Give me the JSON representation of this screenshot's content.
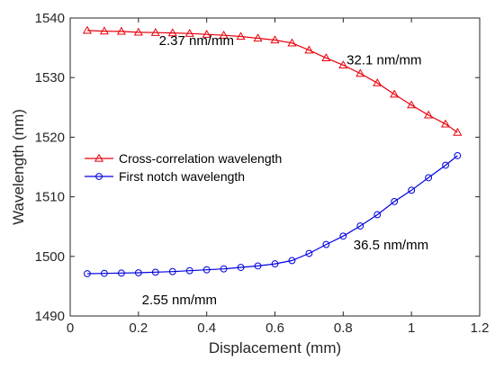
{
  "chart_data": {
    "type": "line",
    "title": "",
    "xlabel": "Displacement (mm)",
    "ylabel": "Wavelength (nm)",
    "xlim": [
      0,
      1.2
    ],
    "ylim": [
      1490,
      1540
    ],
    "x_ticks": [
      0,
      0.2,
      0.4,
      0.6,
      0.8,
      1,
      1.2
    ],
    "y_ticks": [
      1490,
      1500,
      1510,
      1520,
      1530,
      1540
    ],
    "x_tick_labels": [
      "0",
      "0.2",
      "0.4",
      "0.6",
      "0.8",
      "1",
      "1.2"
    ],
    "y_tick_labels": [
      "1490",
      "1500",
      "1510",
      "1520",
      "1530",
      "1540"
    ],
    "grid": false,
    "legend_position": "center-left",
    "series": [
      {
        "name": "Cross-correlation wavelength",
        "color": "#e8000b",
        "marker": "triangle",
        "x": [
          0.05,
          0.1,
          0.15,
          0.2,
          0.25,
          0.3,
          0.35,
          0.4,
          0.45,
          0.5,
          0.55,
          0.6,
          0.65,
          0.7,
          0.75,
          0.8,
          0.85,
          0.9,
          0.95,
          1.0,
          1.05,
          1.1,
          1.135
        ],
        "values": [
          1537.9,
          1537.8,
          1537.75,
          1537.6,
          1537.55,
          1537.5,
          1537.4,
          1537.25,
          1537.1,
          1536.9,
          1536.6,
          1536.3,
          1535.8,
          1534.6,
          1533.3,
          1532.1,
          1530.7,
          1529.1,
          1527.2,
          1525.4,
          1523.7,
          1522.2,
          1520.8
        ]
      },
      {
        "name": "First notch wavelength",
        "color": "#0000e0",
        "marker": "circle",
        "x": [
          0.05,
          0.1,
          0.15,
          0.2,
          0.25,
          0.3,
          0.35,
          0.4,
          0.45,
          0.5,
          0.55,
          0.6,
          0.65,
          0.7,
          0.75,
          0.8,
          0.85,
          0.9,
          0.95,
          1.0,
          1.05,
          1.1,
          1.135
        ],
        "values": [
          1497.1,
          1497.15,
          1497.2,
          1497.25,
          1497.35,
          1497.45,
          1497.6,
          1497.75,
          1497.9,
          1498.15,
          1498.4,
          1498.75,
          1499.3,
          1500.5,
          1502.0,
          1503.4,
          1505.1,
          1507.0,
          1509.2,
          1511.1,
          1513.2,
          1515.3,
          1516.9
        ]
      }
    ],
    "annotations": [
      {
        "text": "2.37 nm/mm",
        "x": 0.37,
        "y": 1535.5
      },
      {
        "text": "32.1 nm/mm",
        "x": 0.92,
        "y": 1532.2
      },
      {
        "text": "36.5 nm/mm",
        "x": 0.94,
        "y": 1501.2
      },
      {
        "text": "2.55 nm/mm",
        "x": 0.32,
        "y": 1492.0
      }
    ]
  }
}
